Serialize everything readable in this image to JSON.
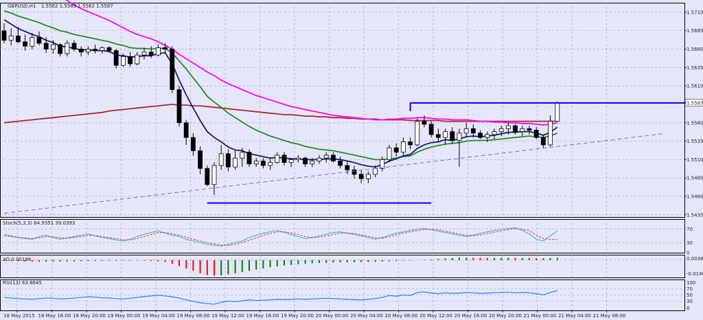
{
  "header": {
    "symbol": "GBPUSD,H1",
    "ohlc": "1.5562 1.5589 1.5562 1.5587"
  },
  "colors": {
    "bg": "#e6e6fa",
    "grid": "#9a9ab8",
    "bull": "#ffffff",
    "bear": "#000000",
    "ema_fast": "#191970",
    "ema_mid": "#228b22",
    "ema_slow": "#ff00ff",
    "ema_long": "#a52a2a",
    "line_blue": "#0000ff",
    "trend": "#6a6af0",
    "stoch_main": "#40c0c0",
    "stoch_signal": "#ff2020",
    "ao_up": "#008000",
    "ao_down": "#ff0000",
    "rsi": "#1e90ff"
  },
  "chart_data": [
    {
      "type": "candlestick",
      "title": "GBPUSD,H1",
      "ylim": [
        1.5432,
        1.5723
      ],
      "price_labels": [
        "1.5710",
        "1.5685",
        "1.5660",
        "1.5635",
        "1.5610",
        "1.5587",
        "1.5560",
        "1.5535",
        "1.5510",
        "1.5485",
        "1.5460",
        "1.5435"
      ],
      "price_ticks": [
        1.571,
        1.5685,
        1.566,
        1.5635,
        1.561,
        1.5587,
        1.556,
        1.5535,
        1.551,
        1.5485,
        1.546,
        1.5435
      ],
      "current_price": 1.5587,
      "x_labels": [
        "18 May 2015",
        "18 May 16:00",
        "18 May 20:00",
        "19 May 00:00",
        "19 May 04:00",
        "19 May 08:00",
        "19 May 12:00",
        "19 May 16:00",
        "19 May 20:00",
        "20 May 00:00",
        "20 May 04:00",
        "20 May 08:00",
        "20 May 12:00",
        "20 May 16:00",
        "20 May 20:00",
        "21 May 00:00",
        "21 May 04:00",
        "21 May 08:00"
      ],
      "candles": [
        [
          1.5685,
          1.5695,
          1.5668,
          1.5672
        ],
        [
          1.5672,
          1.5688,
          1.5665,
          1.5678
        ],
        [
          1.5678,
          1.569,
          1.5668,
          1.567
        ],
        [
          1.567,
          1.568,
          1.5658,
          1.5664
        ],
        [
          1.5664,
          1.5682,
          1.566,
          1.5676
        ],
        [
          1.5676,
          1.5684,
          1.5665,
          1.5668
        ],
        [
          1.5668,
          1.5676,
          1.5655,
          1.566
        ],
        [
          1.566,
          1.5672,
          1.5654,
          1.5666
        ],
        [
          1.5666,
          1.5668,
          1.565,
          1.5654
        ],
        [
          1.5654,
          1.5672,
          1.565,
          1.5668
        ],
        [
          1.5668,
          1.5672,
          1.5657,
          1.566
        ],
        [
          1.566,
          1.5664,
          1.565,
          1.5656
        ],
        [
          1.5656,
          1.5664,
          1.5652,
          1.566
        ],
        [
          1.566,
          1.5666,
          1.5654,
          1.5658
        ],
        [
          1.5658,
          1.5664,
          1.5654,
          1.5662
        ],
        [
          1.5662,
          1.5664,
          1.5655,
          1.5658
        ],
        [
          1.5658,
          1.566,
          1.5634,
          1.5638
        ],
        [
          1.5638,
          1.5654,
          1.5636,
          1.565
        ],
        [
          1.565,
          1.5656,
          1.5636,
          1.564
        ],
        [
          1.564,
          1.5656,
          1.5638,
          1.5652
        ],
        [
          1.5652,
          1.5662,
          1.5646,
          1.5656
        ],
        [
          1.5656,
          1.5664,
          1.5648,
          1.5652
        ],
        [
          1.5652,
          1.5666,
          1.565,
          1.5662
        ],
        [
          1.5662,
          1.5668,
          1.5654,
          1.566
        ],
        [
          1.566,
          1.5664,
          1.56,
          1.5605
        ],
        [
          1.5605,
          1.561,
          1.5555,
          1.556
        ],
        [
          1.556,
          1.5564,
          1.553,
          1.554
        ],
        [
          1.554,
          1.5546,
          1.5515,
          1.5522
        ],
        [
          1.5522,
          1.5528,
          1.549,
          1.5498
        ],
        [
          1.5498,
          1.5502,
          1.5474,
          1.5476
        ],
        [
          1.5476,
          1.5506,
          1.5462,
          1.5502
        ],
        [
          1.5502,
          1.553,
          1.5496,
          1.5518
        ],
        [
          1.5518,
          1.5524,
          1.5494,
          1.55
        ],
        [
          1.55,
          1.5522,
          1.5496,
          1.5512
        ],
        [
          1.5512,
          1.5526,
          1.55,
          1.552
        ],
        [
          1.552,
          1.5524,
          1.55,
          1.5504
        ],
        [
          1.5504,
          1.5512,
          1.55,
          1.5508
        ],
        [
          1.5508,
          1.5512,
          1.5498,
          1.5502
        ],
        [
          1.5502,
          1.5512,
          1.5496,
          1.5506
        ],
        [
          1.5506,
          1.552,
          1.5504,
          1.5516
        ],
        [
          1.5516,
          1.552,
          1.5502,
          1.5506
        ],
        [
          1.5506,
          1.5512,
          1.55,
          1.551
        ],
        [
          1.551,
          1.5516,
          1.5506,
          1.5512
        ],
        [
          1.5512,
          1.5514,
          1.55,
          1.5504
        ],
        [
          1.5504,
          1.5512,
          1.55,
          1.5508
        ],
        [
          1.5508,
          1.5516,
          1.5504,
          1.5512
        ],
        [
          1.5512,
          1.552,
          1.5506,
          1.5516
        ],
        [
          1.5516,
          1.552,
          1.5506,
          1.5508
        ],
        [
          1.5508,
          1.5514,
          1.5498,
          1.5502
        ],
        [
          1.5502,
          1.5508,
          1.549,
          1.5496
        ],
        [
          1.5496,
          1.5502,
          1.5484,
          1.549
        ],
        [
          1.549,
          1.5496,
          1.5478,
          1.5484
        ],
        [
          1.5484,
          1.5494,
          1.5478,
          1.549
        ],
        [
          1.549,
          1.5502,
          1.5486,
          1.5498
        ],
        [
          1.5498,
          1.5514,
          1.5494,
          1.551
        ],
        [
          1.551,
          1.553,
          1.5506,
          1.5526
        ],
        [
          1.5526,
          1.5532,
          1.5514,
          1.552
        ],
        [
          1.552,
          1.554,
          1.5516,
          1.5534
        ],
        [
          1.5534,
          1.554,
          1.5524,
          1.553
        ],
        [
          1.553,
          1.5566,
          1.5528,
          1.5562
        ],
        [
          1.5562,
          1.557,
          1.5554,
          1.5558
        ],
        [
          1.5558,
          1.5562,
          1.554,
          1.5544
        ],
        [
          1.5544,
          1.5552,
          1.5534,
          1.554
        ],
        [
          1.554,
          1.5552,
          1.553,
          1.5548
        ],
        [
          1.5548,
          1.5554,
          1.5532,
          1.5536
        ],
        [
          1.5536,
          1.5552,
          1.55,
          1.5546
        ],
        [
          1.5546,
          1.556,
          1.554,
          1.5552
        ],
        [
          1.5552,
          1.5558,
          1.554,
          1.5546
        ],
        [
          1.5546,
          1.555,
          1.5538,
          1.554
        ],
        [
          1.554,
          1.5548,
          1.5534,
          1.5544
        ],
        [
          1.5544,
          1.5552,
          1.5538,
          1.5548
        ],
        [
          1.5548,
          1.5556,
          1.5542,
          1.5552
        ],
        [
          1.5552,
          1.556,
          1.5544,
          1.5556
        ],
        [
          1.5556,
          1.5558,
          1.5544,
          1.5548
        ],
        [
          1.5548,
          1.5556,
          1.5542,
          1.5552
        ],
        [
          1.5552,
          1.5556,
          1.5544,
          1.555
        ],
        [
          1.555,
          1.5554,
          1.5538,
          1.554
        ],
        [
          1.554,
          1.5544,
          1.5526,
          1.553
        ],
        [
          1.553,
          1.557,
          1.5528,
          1.5562
        ],
        [
          1.5562,
          1.5589,
          1.5562,
          1.5587
        ]
      ],
      "ema_fast": [
        1.57,
        1.5694,
        1.5688,
        1.5684,
        1.568,
        1.5677,
        1.5672,
        1.5669,
        1.5664,
        1.5663,
        1.5661,
        1.5659,
        1.5659,
        1.5658,
        1.5658,
        1.5657,
        1.5652,
        1.5651,
        1.5649,
        1.565,
        1.5651,
        1.5651,
        1.5654,
        1.5655,
        1.564,
        1.5618,
        1.5598,
        1.558,
        1.5563,
        1.5548,
        1.554,
        1.5534,
        1.5527,
        1.5523,
        1.5522,
        1.5518,
        1.5516,
        1.5514,
        1.5512,
        1.5513,
        1.5512,
        1.5511,
        1.5511,
        1.551,
        1.551,
        1.551,
        1.5511,
        1.5511,
        1.551,
        1.5508,
        1.5506,
        1.5503,
        1.5501,
        1.55,
        1.5503,
        1.5508,
        1.5511,
        1.5515,
        1.5517,
        1.5525,
        1.553,
        1.5533,
        1.5534,
        1.5537,
        1.5536,
        1.5538,
        1.5541,
        1.5542,
        1.5541,
        1.5542,
        1.5543,
        1.5545,
        1.5547,
        1.5547,
        1.5548,
        1.5548,
        1.5546,
        1.5543,
        1.5547,
        1.5554
      ],
      "ema_mid": [
        1.5712,
        1.5709,
        1.5705,
        1.5702,
        1.5699,
        1.5696,
        1.5692,
        1.5689,
        1.5685,
        1.5683,
        1.568,
        1.5678,
        1.5676,
        1.5674,
        1.5672,
        1.567,
        1.5667,
        1.5665,
        1.5662,
        1.5661,
        1.5661,
        1.566,
        1.5661,
        1.5661,
        1.5655,
        1.5644,
        1.5633,
        1.5621,
        1.5609,
        1.5596,
        1.5588,
        1.5581,
        1.5573,
        1.5567,
        1.5561,
        1.5555,
        1.555,
        1.5546,
        1.5542,
        1.5539,
        1.5536,
        1.5533,
        1.5531,
        1.5528,
        1.5526,
        1.5524,
        1.5523,
        1.5522,
        1.552,
        1.5518,
        1.5516,
        1.5514,
        1.5512,
        1.551,
        1.551,
        1.5511,
        1.5512,
        1.5514,
        1.5515,
        1.552,
        1.5524,
        1.5527,
        1.5529,
        1.5531,
        1.5532,
        1.5533,
        1.5535,
        1.5536,
        1.5536,
        1.5536,
        1.5537,
        1.5538,
        1.5539,
        1.554,
        1.5541,
        1.5542,
        1.5541,
        1.554,
        1.5542,
        1.5546
      ],
      "ema_slow": [
        1.579,
        1.5781,
        1.5773,
        1.5766,
        1.5759,
        1.5752,
        1.5745,
        1.5738,
        1.5732,
        1.5726,
        1.572,
        1.5715,
        1.5711,
        1.5707,
        1.5703,
        1.5699,
        1.5694,
        1.5689,
        1.5684,
        1.568,
        1.5677,
        1.5674,
        1.567,
        1.5665,
        1.566,
        1.5653,
        1.5647,
        1.5641,
        1.5635,
        1.5629,
        1.5624,
        1.5618,
        1.5613,
        1.5609,
        1.5605,
        1.5601,
        1.5597,
        1.5594,
        1.5591,
        1.5588,
        1.5585,
        1.5582,
        1.558,
        1.5578,
        1.5576,
        1.5574,
        1.5572,
        1.557,
        1.5569,
        1.5568,
        1.5567,
        1.5566,
        1.5565,
        1.5564,
        1.5564,
        1.5565,
        1.5565,
        1.5566,
        1.5566,
        1.5567,
        1.5567,
        1.5566,
        1.5565,
        1.5565,
        1.5564,
        1.5564,
        1.5564,
        1.5563,
        1.5562,
        1.5562,
        1.5561,
        1.5561,
        1.556,
        1.556,
        1.5559,
        1.5559,
        1.5558,
        1.5557,
        1.5558,
        1.556
      ],
      "ema_long": [
        1.556,
        1.5561,
        1.5562,
        1.5563,
        1.5564,
        1.5565,
        1.5566,
        1.5567,
        1.5568,
        1.5569,
        1.557,
        1.5571,
        1.5572,
        1.5573,
        1.5574,
        1.5576,
        1.5577,
        1.5578,
        1.5579,
        1.558,
        1.5581,
        1.5582,
        1.5583,
        1.5584,
        1.5585,
        1.5584,
        1.5584,
        1.5583,
        1.5583,
        1.5582,
        1.5581,
        1.558,
        1.5579,
        1.5578,
        1.5577,
        1.5576,
        1.5575,
        1.5574,
        1.5573,
        1.5572,
        1.5571,
        1.5571,
        1.557,
        1.5569,
        1.5569,
        1.5568,
        1.5568,
        1.5567,
        1.5567,
        1.5566,
        1.5566,
        1.5565,
        1.5565,
        1.5565,
        1.5564,
        1.5564,
        1.5564,
        1.5564,
        1.5563,
        1.5563,
        1.5563,
        1.5563,
        1.5563,
        1.5562,
        1.5562,
        1.5562,
        1.5562,
        1.5562,
        1.5562,
        1.5562,
        1.5562,
        1.5562,
        1.5562,
        1.5562,
        1.5562,
        1.5562,
        1.5562,
        1.5562,
        1.5562,
        1.5562
      ],
      "support_level": 1.5451,
      "support_range": [
        58,
        0
      ],
      "resistance_level": 1.5587,
      "resistance_start_index": 58,
      "trendline": [
        [
          0,
          1.5437
        ],
        [
          94,
          1.5545
        ]
      ]
    },
    {
      "type": "line",
      "title": "Stoch(5,3,3) 64.9351 39.0393",
      "ylim": [
        0,
        100
      ],
      "levels": [
        "70",
        "30",
        "0"
      ],
      "level_values": [
        70,
        30,
        0
      ],
      "main": [
        55,
        50,
        45,
        42,
        40,
        48,
        52,
        45,
        40,
        44,
        48,
        52,
        56,
        50,
        45,
        42,
        38,
        35,
        40,
        48,
        55,
        60,
        65,
        58,
        52,
        48,
        40,
        35,
        30,
        25,
        22,
        20,
        25,
        30,
        35,
        45,
        52,
        58,
        62,
        66,
        60,
        54,
        48,
        42,
        45,
        50,
        55,
        60,
        62,
        58,
        54,
        50,
        45,
        40,
        45,
        52,
        58,
        62,
        66,
        70,
        72,
        68,
        64,
        60,
        56,
        52,
        48,
        52,
        58,
        62,
        66,
        70,
        72,
        74,
        66,
        56,
        40,
        35,
        50,
        65
      ],
      "signal": [
        50,
        48,
        46,
        44,
        42,
        44,
        48,
        47,
        44,
        43,
        45,
        48,
        52,
        51,
        48,
        45,
        42,
        38,
        38,
        42,
        48,
        54,
        60,
        60,
        56,
        52,
        46,
        40,
        35,
        30,
        26,
        22,
        22,
        25,
        30,
        37,
        44,
        52,
        57,
        62,
        62,
        59,
        54,
        48,
        45,
        46,
        50,
        54,
        58,
        59,
        57,
        53,
        49,
        44,
        43,
        47,
        53,
        58,
        62,
        66,
        69,
        70,
        68,
        64,
        60,
        56,
        52,
        51,
        53,
        57,
        61,
        65,
        69,
        72,
        70,
        65,
        52,
        42,
        40,
        39
      ]
    },
    {
      "type": "bar",
      "title": "AO 0.00196",
      "levels": [
        "0.0038",
        "-0.0140"
      ],
      "ylim": [
        -0.0145,
        0.0045
      ],
      "values": [
        -0.0005,
        -0.0008,
        -0.001,
        -0.0011,
        -0.0012,
        -0.0013,
        -0.0013,
        -0.0012,
        -0.0012,
        -0.0011,
        -0.001,
        -0.0009,
        -0.0008,
        -0.0007,
        -0.0007,
        -0.0006,
        -0.0006,
        -0.0005,
        -0.0005,
        -0.0004,
        -0.0005,
        -0.0007,
        -0.001,
        -0.0015,
        -0.003,
        -0.005,
        -0.007,
        -0.009,
        -0.011,
        -0.0125,
        -0.013,
        -0.0128,
        -0.012,
        -0.011,
        -0.01,
        -0.009,
        -0.008,
        -0.007,
        -0.006,
        -0.0052,
        -0.0045,
        -0.004,
        -0.0035,
        -0.003,
        -0.0027,
        -0.0024,
        -0.0022,
        -0.002,
        -0.0019,
        -0.0018,
        -0.0017,
        -0.0016,
        -0.0015,
        -0.0013,
        -0.0011,
        -0.0009,
        -0.0007,
        -0.0005,
        -0.0003,
        0.0,
        0.0003,
        0.0006,
        0.001,
        0.0014,
        0.0018,
        0.002,
        0.002,
        0.0019,
        0.0018,
        0.0017,
        0.0018,
        0.0019,
        0.0019,
        0.0018,
        0.0018,
        0.0017,
        0.0016,
        0.0016,
        0.0017,
        0.0019
      ]
    },
    {
      "type": "line",
      "title": "RSI(13) 63.8645",
      "ylim": [
        0,
        100
      ],
      "levels": [
        "100",
        "70",
        "50",
        "30",
        "0"
      ],
      "level_values": [
        100,
        70,
        50,
        30,
        0
      ],
      "values": [
        42,
        40,
        38,
        37,
        36,
        38,
        40,
        39,
        37,
        38,
        40,
        42,
        44,
        43,
        41,
        40,
        38,
        37,
        39,
        42,
        45,
        47,
        49,
        47,
        44,
        40,
        34,
        29,
        25,
        22,
        20,
        26,
        30,
        28,
        31,
        34,
        32,
        33,
        34,
        36,
        35,
        36,
        37,
        36,
        37,
        38,
        39,
        38,
        37,
        36,
        35,
        34,
        36,
        38,
        42,
        48,
        46,
        50,
        48,
        58,
        60,
        56,
        54,
        57,
        55,
        56,
        58,
        57,
        55,
        56,
        57,
        58,
        59,
        57,
        58,
        57,
        54,
        50,
        58,
        64
      ]
    }
  ]
}
